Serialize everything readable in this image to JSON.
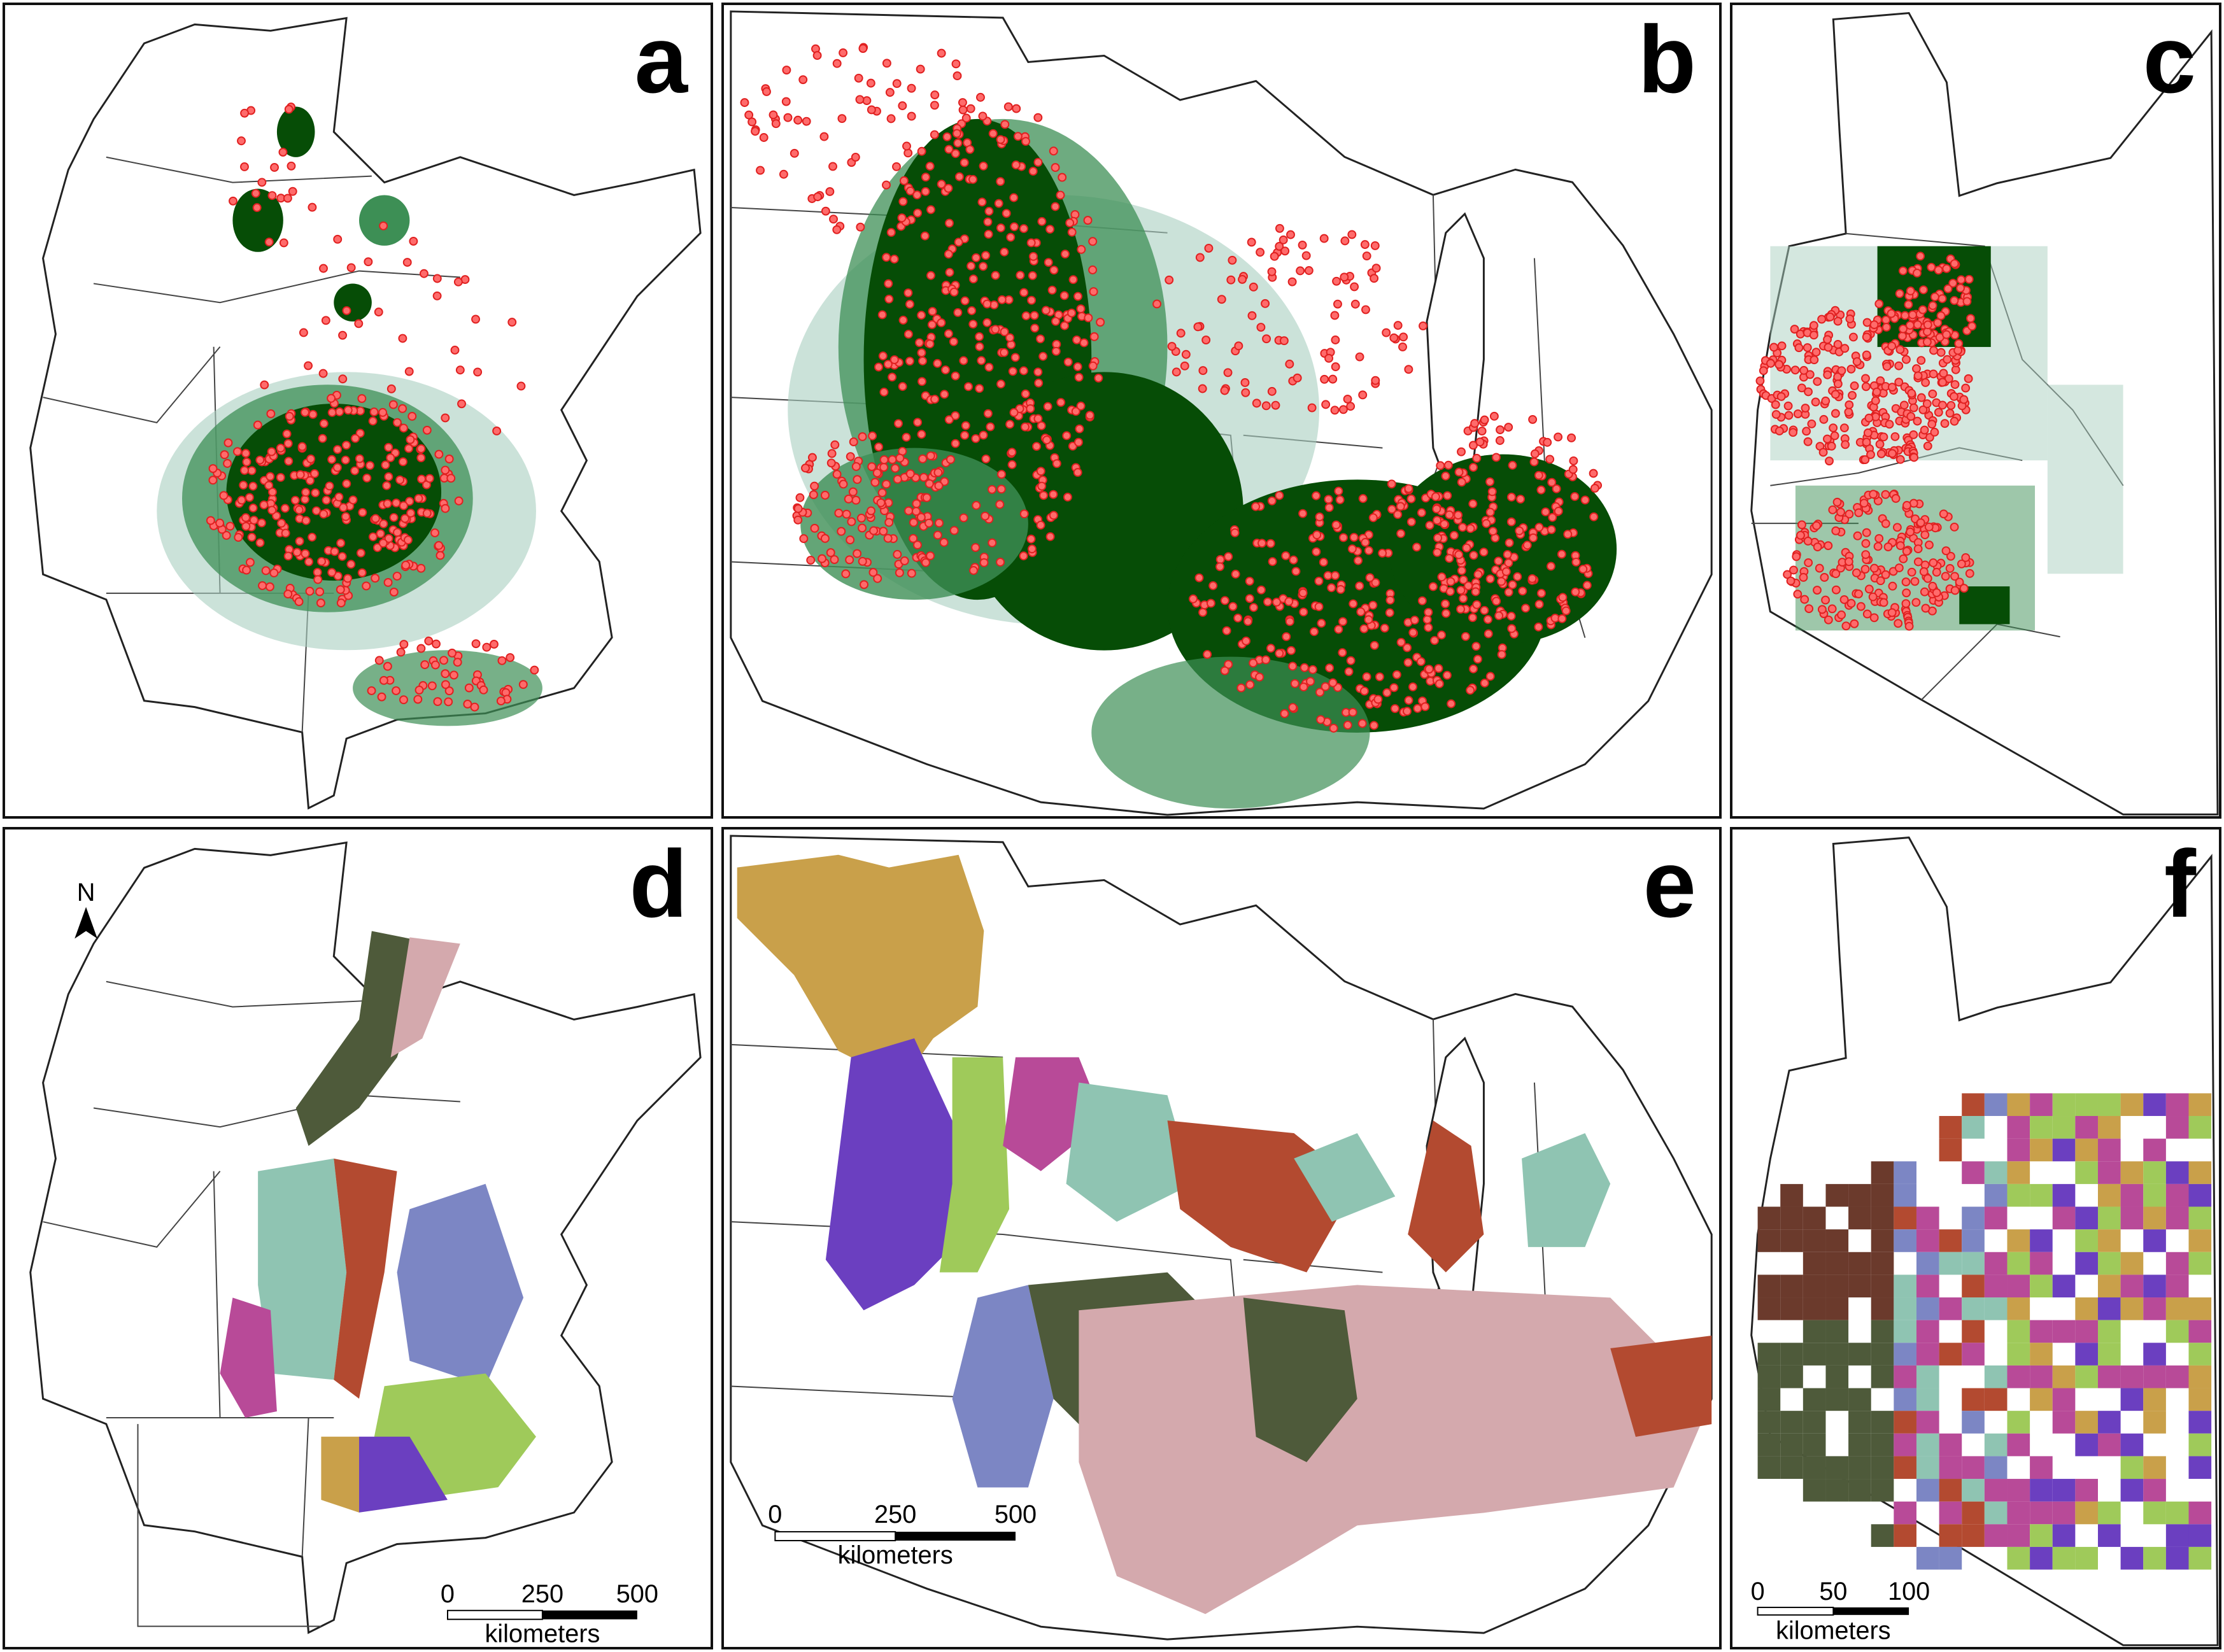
{
  "figure": {
    "panel_labels": [
      "a",
      "b",
      "c",
      "d",
      "e",
      "f"
    ]
  },
  "colors": {
    "dot_fill": "#ff6b6b",
    "dot_stroke": "#e02020",
    "density_dark": "#064d06",
    "density_mid": "#3d8f55",
    "density_light": "#a9cfbf",
    "cluster_palette": [
      "#c9a04a",
      "#6b3fc0",
      "#9fca5a",
      "#b84a98",
      "#8fc4b2",
      "#b34a30",
      "#4e5a3a",
      "#d4a9ad",
      "#7c86c4",
      "#6b3a2c"
    ]
  },
  "north_arrow": {
    "label": "N"
  },
  "scalebars": {
    "d": {
      "ticks": [
        "0",
        "250",
        "500"
      ],
      "unit": "kilometers"
    },
    "e": {
      "ticks": [
        "0",
        "250",
        "500"
      ],
      "unit": "kilometers"
    },
    "f": {
      "ticks": [
        "0",
        "50",
        "100"
      ],
      "unit": "kilometers"
    }
  }
}
